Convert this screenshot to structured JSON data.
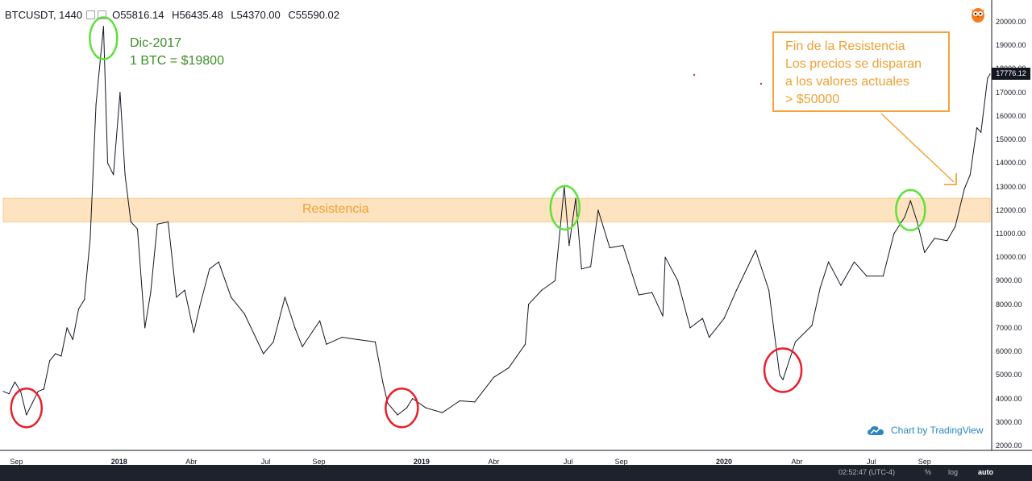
{
  "header": {
    "symbol": "BTCUSDT, 1440",
    "open": "O55816.14",
    "high": "H56435.48",
    "low": "L54370.00",
    "close": "C55590.02"
  },
  "annotations": {
    "peak_line1": "Dic-2017",
    "peak_line2": "1 BTC = $19800",
    "resistance_label": "Resistencia",
    "callout_lines": [
      "Fin de la Resistencia",
      "Los precios se disparan",
      "a los valores actuales",
      "> $50000"
    ]
  },
  "branding": {
    "text": "Chart by TradingView",
    "icon": "tradingview-cloud-icon"
  },
  "footer": {
    "time": "02:52:47 (UTC-4)",
    "pct": "%",
    "log": "log",
    "auto": "auto"
  },
  "colors": {
    "price_line": "#131722",
    "resistance_band": "#fde3bf",
    "green_circle": "#5ee23a",
    "red_circle": "#e8202a",
    "callout": "#f5a33a",
    "brand": "#2d86c4"
  },
  "chart_data": {
    "type": "line",
    "symbol": "BTCUSDT",
    "interval": "1440",
    "last_price": "17776.12",
    "ylim": [
      2000,
      20000
    ],
    "y_ticks": [
      "20000.00",
      "19000.00",
      "18000.00",
      "17000.00",
      "16000.00",
      "15000.00",
      "14000.00",
      "13000.00",
      "12000.00",
      "11000.00",
      "10000.00",
      "9000.00",
      "8000.00",
      "7000.00",
      "6000.00",
      "5000.00",
      "4000.00",
      "3000.00",
      "2000.00"
    ],
    "x_ticks": [
      {
        "label": "Sep",
        "date": "2017-09"
      },
      {
        "label": "2018",
        "date": "2018-01",
        "bold": true
      },
      {
        "label": "Abr",
        "date": "2018-04"
      },
      {
        "label": "Jul",
        "date": "2018-07"
      },
      {
        "label": "Sep",
        "date": "2018-09"
      },
      {
        "label": "2019",
        "date": "2019-01",
        "bold": true
      },
      {
        "label": "Abr",
        "date": "2019-04"
      },
      {
        "label": "Jul",
        "date": "2019-07"
      },
      {
        "label": "Sep",
        "date": "2019-09"
      },
      {
        "label": "2020",
        "date": "2020-01",
        "bold": true
      },
      {
        "label": "Abr",
        "date": "2020-04"
      },
      {
        "label": "Jul",
        "date": "2020-07"
      },
      {
        "label": "Sep",
        "date": "2020-09"
      }
    ],
    "resistance_zone": [
      11500,
      12500
    ],
    "series": [
      {
        "values": [
          [
            "2017-08-18",
            4300
          ],
          [
            "2017-08-25",
            4200
          ],
          [
            "2017-09-01",
            4700
          ],
          [
            "2017-09-08",
            4300
          ],
          [
            "2017-09-15",
            3300
          ],
          [
            "2017-09-22",
            3800
          ],
          [
            "2017-09-29",
            4300
          ],
          [
            "2017-10-06",
            4400
          ],
          [
            "2017-10-13",
            5600
          ],
          [
            "2017-10-20",
            5900
          ],
          [
            "2017-10-27",
            5800
          ],
          [
            "2017-11-03",
            7000
          ],
          [
            "2017-11-10",
            6500
          ],
          [
            "2017-11-17",
            7800
          ],
          [
            "2017-11-24",
            8200
          ],
          [
            "2017-12-01",
            10800
          ],
          [
            "2017-12-08",
            16500
          ],
          [
            "2017-12-17",
            19800
          ],
          [
            "2017-12-22",
            14000
          ],
          [
            "2017-12-29",
            13500
          ],
          [
            "2018-01-06",
            17000
          ],
          [
            "2018-01-12",
            13500
          ],
          [
            "2018-01-19",
            11500
          ],
          [
            "2018-01-27",
            11200
          ],
          [
            "2018-02-05",
            7000
          ],
          [
            "2018-02-12",
            8500
          ],
          [
            "2018-02-20",
            11400
          ],
          [
            "2018-03-05",
            11500
          ],
          [
            "2018-03-15",
            8300
          ],
          [
            "2018-03-25",
            8600
          ],
          [
            "2018-04-05",
            6800
          ],
          [
            "2018-04-12",
            7900
          ],
          [
            "2018-04-24",
            9500
          ],
          [
            "2018-05-05",
            9800
          ],
          [
            "2018-05-20",
            8300
          ],
          [
            "2018-06-05",
            7600
          ],
          [
            "2018-06-28",
            5900
          ],
          [
            "2018-07-10",
            6400
          ],
          [
            "2018-07-24",
            8300
          ],
          [
            "2018-08-05",
            7000
          ],
          [
            "2018-08-14",
            6200
          ],
          [
            "2018-09-04",
            7300
          ],
          [
            "2018-09-12",
            6300
          ],
          [
            "2018-10-01",
            6600
          ],
          [
            "2018-10-20",
            6500
          ],
          [
            "2018-11-10",
            6400
          ],
          [
            "2018-11-19",
            4700
          ],
          [
            "2018-11-25",
            3800
          ],
          [
            "2018-12-07",
            3300
          ],
          [
            "2018-12-18",
            3600
          ],
          [
            "2018-12-25",
            4000
          ],
          [
            "2019-01-10",
            3600
          ],
          [
            "2019-01-30",
            3400
          ],
          [
            "2019-02-20",
            3900
          ],
          [
            "2019-03-10",
            3850
          ],
          [
            "2019-04-02",
            4900
          ],
          [
            "2019-04-20",
            5300
          ],
          [
            "2019-05-10",
            6300
          ],
          [
            "2019-05-14",
            8000
          ],
          [
            "2019-05-30",
            8600
          ],
          [
            "2019-06-15",
            9000
          ],
          [
            "2019-06-26",
            13000
          ],
          [
            "2019-07-02",
            10500
          ],
          [
            "2019-07-10",
            12500
          ],
          [
            "2019-07-17",
            9500
          ],
          [
            "2019-07-28",
            9600
          ],
          [
            "2019-08-06",
            12000
          ],
          [
            "2019-08-20",
            10400
          ],
          [
            "2019-09-05",
            10500
          ],
          [
            "2019-09-24",
            8400
          ],
          [
            "2019-10-10",
            8500
          ],
          [
            "2019-10-23",
            7500
          ],
          [
            "2019-10-26",
            10000
          ],
          [
            "2019-11-10",
            9000
          ],
          [
            "2019-11-25",
            7000
          ],
          [
            "2019-12-10",
            7400
          ],
          [
            "2019-12-18",
            6600
          ],
          [
            "2020-01-05",
            7400
          ],
          [
            "2020-01-20",
            8600
          ],
          [
            "2020-02-12",
            10300
          ],
          [
            "2020-02-28",
            8600
          ],
          [
            "2020-03-12",
            5000
          ],
          [
            "2020-03-16",
            4800
          ],
          [
            "2020-03-31",
            6400
          ],
          [
            "2020-04-20",
            7100
          ],
          [
            "2020-04-30",
            8700
          ],
          [
            "2020-05-10",
            9800
          ],
          [
            "2020-05-25",
            8800
          ],
          [
            "2020-06-10",
            9800
          ],
          [
            "2020-06-25",
            9200
          ],
          [
            "2020-07-15",
            9200
          ],
          [
            "2020-07-28",
            11000
          ],
          [
            "2020-08-10",
            11700
          ],
          [
            "2020-08-17",
            12400
          ],
          [
            "2020-08-25",
            11500
          ],
          [
            "2020-09-03",
            10200
          ],
          [
            "2020-09-15",
            10800
          ],
          [
            "2020-09-30",
            10700
          ],
          [
            "2020-10-10",
            11300
          ],
          [
            "2020-10-21",
            12900
          ],
          [
            "2020-10-28",
            13500
          ],
          [
            "2020-11-05",
            15500
          ],
          [
            "2020-11-10",
            15300
          ],
          [
            "2020-11-18",
            17600
          ],
          [
            "2020-11-21",
            17776
          ]
        ]
      }
    ]
  }
}
